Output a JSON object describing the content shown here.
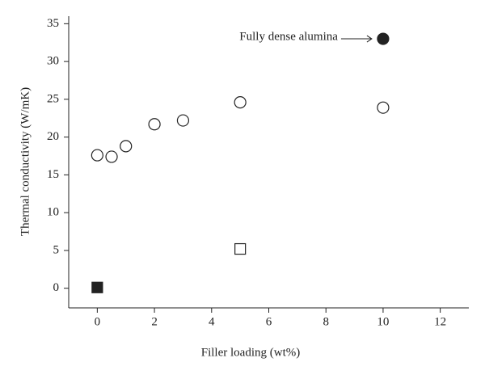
{
  "chart_data": {
    "type": "scatter",
    "x_label": "Filler loading (wt%)",
    "y_label": "Thermal conductivity (W/mK)",
    "xlim": [
      -1,
      13
    ],
    "ylim": [
      -2.6,
      36
    ],
    "xticks": [
      0,
      2,
      4,
      6,
      8,
      10,
      12
    ],
    "yticks": [
      0,
      5,
      10,
      15,
      20,
      25,
      30,
      35
    ],
    "series": [
      {
        "marker": "circle",
        "filled": false,
        "color": "#222",
        "x": [
          0,
          0.5,
          1,
          2,
          3,
          5,
          10
        ],
        "values": [
          17.6,
          17.4,
          18.8,
          21.7,
          22.2,
          24.6,
          23.9
        ]
      },
      {
        "marker": "circle",
        "filled": true,
        "color": "#222",
        "x": [
          10
        ],
        "values": [
          33
        ]
      },
      {
        "marker": "square",
        "filled": false,
        "color": "#222",
        "x": [
          5
        ],
        "values": [
          5.2
        ]
      },
      {
        "marker": "square",
        "filled": true,
        "color": "#222",
        "x": [
          0
        ],
        "values": [
          0.1
        ]
      }
    ],
    "annotation": {
      "text": "Fully dense alumina",
      "series": 1,
      "point": 0
    }
  }
}
